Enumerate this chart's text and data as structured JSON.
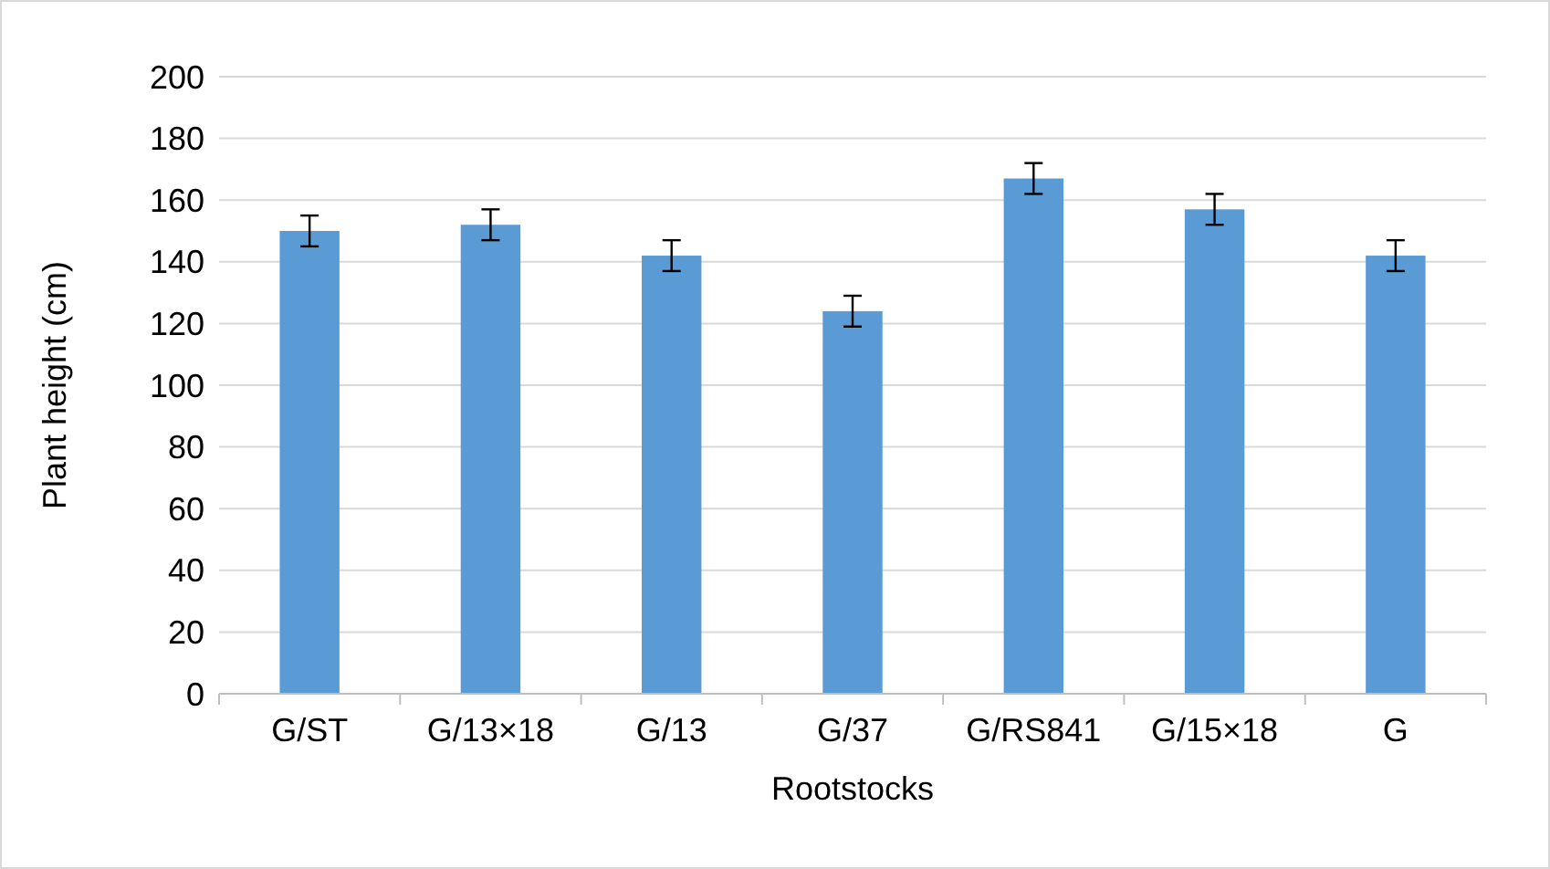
{
  "chart_data": {
    "type": "bar",
    "xlabel": "Rootstocks",
    "ylabel": "Plant height (cm)",
    "categories": [
      "G/ST",
      "G/13×18",
      "G/13",
      "G/37",
      "G/RS841",
      "G/15×18",
      "G"
    ],
    "values": [
      150,
      152,
      142,
      124,
      167,
      157,
      142
    ],
    "errors": [
      5,
      5,
      5,
      5,
      5,
      5,
      5
    ],
    "color": "#5b9bd5",
    "ylim": [
      0,
      200
    ],
    "yticks": [
      0,
      20,
      40,
      60,
      80,
      100,
      120,
      140,
      160,
      180,
      200
    ],
    "grid": "y"
  }
}
